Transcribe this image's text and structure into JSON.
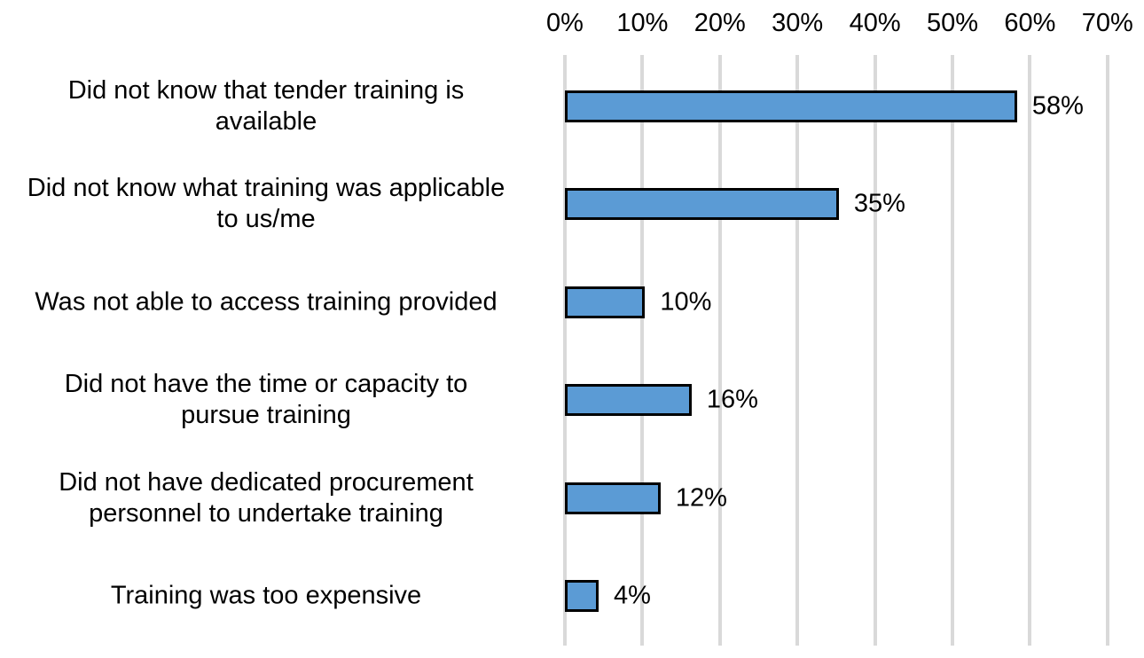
{
  "chart_data": {
    "type": "bar",
    "orientation": "horizontal",
    "title": "",
    "xlabel": "",
    "ylabel": "",
    "xlim": [
      0,
      70
    ],
    "x_ticks": [
      "0%",
      "10%",
      "20%",
      "30%",
      "40%",
      "50%",
      "60%",
      "70%"
    ],
    "x_axis_position": "top",
    "grid": "vertical",
    "legend": "none",
    "bar_color": "#5b9bd5",
    "categories": [
      "Did not know that tender training is available",
      "Did not know what training was applicable to us/me",
      "Was not able to access training provided",
      "Did not have the time or capacity to pursue training",
      "Did not have dedicated procurement personnel to undertake training",
      "Training was too expensive"
    ],
    "values": [
      58,
      35,
      10,
      16,
      12,
      4
    ],
    "data_labels": [
      "58%",
      "35%",
      "10%",
      "16%",
      "12%",
      "4%"
    ]
  },
  "axis": {
    "ticks": [
      "0%",
      "10%",
      "20%",
      "30%",
      "40%",
      "50%",
      "60%",
      "70%"
    ]
  },
  "rows": [
    {
      "line1": "Did not know that tender training is",
      "line2": "available",
      "label": "58%"
    },
    {
      "line1": "Did not know what training was applicable",
      "line2": "to us/me",
      "label": "35%"
    },
    {
      "line1": "Was not able to access training provided",
      "line2": "",
      "label": "10%"
    },
    {
      "line1": "Did not have the time or capacity to",
      "line2": "pursue training",
      "label": "16%"
    },
    {
      "line1": "Did not have dedicated procurement",
      "line2": "personnel to undertake training",
      "label": "12%"
    },
    {
      "line1": "Training was too expensive",
      "line2": "",
      "label": "4%"
    }
  ]
}
